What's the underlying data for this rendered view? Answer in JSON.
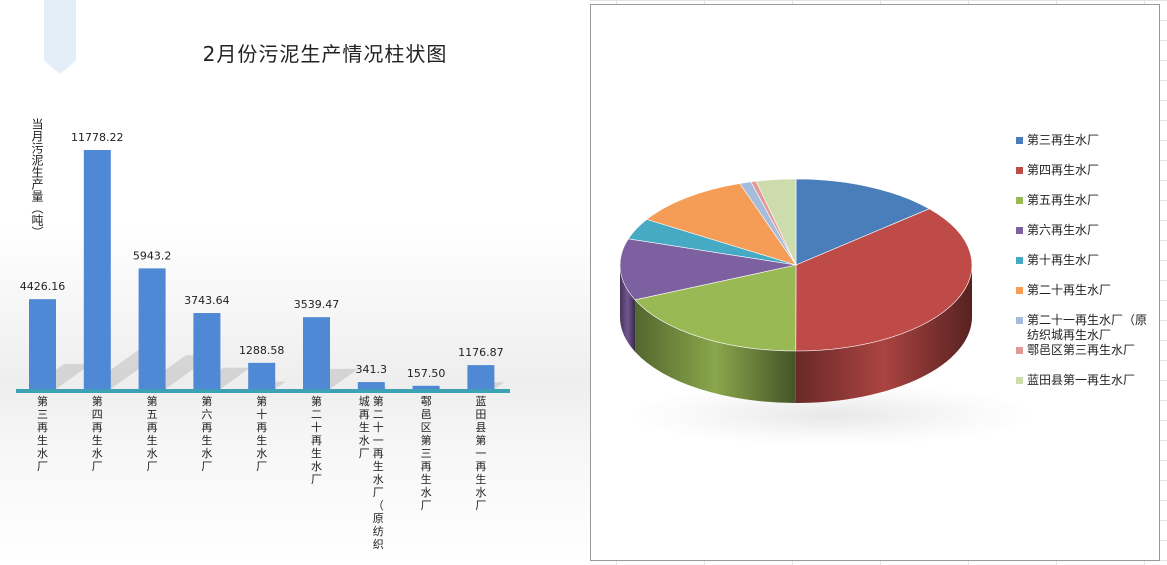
{
  "chart_data": [
    {
      "type": "bar",
      "title": "2月份污泥生产情况柱状图",
      "ylabel": "当月污泥生产量（吨）",
      "xlabel": "",
      "categories": [
        "第三再生水厂",
        "第四再生水厂",
        "第五再生水厂",
        "第六再生水厂",
        "第十再生水厂",
        "第二十再生水厂",
        "第二十一再生水厂（原纺织城再生水厂",
        "鄠邑区第三再生水厂",
        "蓝田县第一再生水厂"
      ],
      "values": [
        4426.16,
        11778.22,
        5943.2,
        3743.64,
        1288.58,
        3539.47,
        341.3,
        157.5,
        1176.87
      ],
      "value_labels": [
        "4426.16",
        "11778.22",
        "5943.2",
        "3743.64",
        "1288.58",
        "3539.47",
        "341.3",
        "157.50",
        "1176.87"
      ],
      "ylim": [
        0,
        14000
      ],
      "grid": false,
      "bar_color": "#4f88d4",
      "axis_color": "#3ca2b4"
    },
    {
      "type": "pie",
      "labels": [
        "第三再生水厂",
        "第四再生水厂",
        "第五再生水厂",
        "第六再生水厂",
        "第十再生水厂",
        "第二十再生水厂",
        "第二十一再生水厂（原纺织城再生水厂",
        "鄠邑区第三再生水厂",
        "蓝田县第一再生水厂"
      ],
      "values": [
        4426.16,
        11778.22,
        5943.2,
        3743.64,
        1288.58,
        3539.47,
        341.3,
        157.5,
        1176.87
      ],
      "colors": [
        "#4a7ebb",
        "#be4b48",
        "#98b954",
        "#7d60a0",
        "#46aac4",
        "#f59d56",
        "#a5bcdc",
        "#e19a98",
        "#cddcac"
      ],
      "legend_position": "right",
      "legend_labels": [
        "第三再生水厂",
        "第四再生水厂",
        "第五再生水厂",
        "第六再生水厂",
        "第十再生水厂",
        "第二十再生水厂",
        "第二十一再生水厂（原纺织城再生水厂",
        "鄠邑区第三再生水厂",
        "蓝田县第一再生水厂"
      ]
    }
  ]
}
